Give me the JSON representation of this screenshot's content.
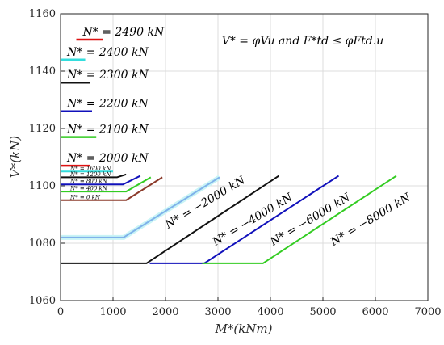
{
  "chart_data": {
    "type": "line",
    "xlabel": "M*(kNm)",
    "ylabel": "V*(kN)",
    "xlim": [
      0,
      7000
    ],
    "ylim": [
      1060,
      1160
    ],
    "xticks": [
      "0",
      "1000",
      "2000",
      "3000",
      "4000",
      "5000",
      "6000",
      "7000"
    ],
    "yticks": [
      "1060",
      "1080",
      "1100",
      "1120",
      "1140",
      "1160"
    ],
    "grid": true,
    "condition": "V* = φVu and F*td ≤ φFtd.u",
    "colors": {
      "red": "#dd1111",
      "cyan": "#33dddd",
      "black": "#111111",
      "blue": "#1111bb",
      "green": "#33cc22",
      "brown": "#8b3a2a",
      "lightblue": "#7fb2ea"
    },
    "upper_labels": [
      {
        "text": "N* = 2490 kN",
        "color": "red",
        "x": [
          300,
          800
        ],
        "y": 1151
      },
      {
        "text": "N* = 2400 kN",
        "color": "cyan",
        "x": [
          0,
          470
        ],
        "y": 1144
      },
      {
        "text": "N* = 2300 kN",
        "color": "black",
        "x": [
          0,
          560
        ],
        "y": 1136
      },
      {
        "text": "N* = 2200 kN",
        "color": "blue",
        "x": [
          0,
          600
        ],
        "y": 1126
      },
      {
        "text": "N* = 2100 kN",
        "color": "green",
        "x": [
          0,
          680
        ],
        "y": 1117
      },
      {
        "text": "N* = 2000 kN",
        "color": "red",
        "x": [
          0,
          560
        ],
        "y": 1107
      }
    ],
    "small_labels": [
      {
        "text": "N* = 1600 kN",
        "color": "cyan",
        "y": 1105
      },
      {
        "text": "N* = 1200 kN",
        "color": "black",
        "y": 1103
      },
      {
        "text": "N* = 800 kN",
        "color": "blue",
        "y": 1100.5
      },
      {
        "text": "N* = 400 kN",
        "color": "green",
        "y": 1098
      },
      {
        "text": "N* = 0 kN",
        "color": "brown",
        "y": 1095
      }
    ],
    "series": [
      {
        "name": "N* = 1600 kN",
        "color": "cyan",
        "x": [
          0,
          1000
        ],
        "y": [
          1105,
          1105
        ]
      },
      {
        "name": "N* = 1200 kN",
        "color": "black",
        "x": [
          0,
          1080,
          1250
        ],
        "y": [
          1103,
          1103,
          1104
        ]
      },
      {
        "name": "N* = 800 kN",
        "color": "blue",
        "x": [
          0,
          1190,
          1520
        ],
        "y": [
          1100.5,
          1100.5,
          1103.5
        ]
      },
      {
        "name": "N* = 400 kN",
        "color": "green",
        "x": [
          0,
          1250,
          1720
        ],
        "y": [
          1098,
          1098,
          1103
        ]
      },
      {
        "name": "N* = 0 kN",
        "color": "brown",
        "x": [
          0,
          1250,
          1940
        ],
        "y": [
          1095,
          1095,
          1103
        ]
      },
      {
        "name": "N* = −2000 kN",
        "color": "lightblue",
        "x": [
          0,
          1200,
          3030
        ],
        "y": [
          1082,
          1082,
          1103
        ]
      },
      {
        "name": "N* = −4000 kN",
        "color": "black",
        "x": [
          0,
          1640,
          4160
        ],
        "y": [
          1073,
          1073,
          1103.5
        ]
      },
      {
        "name": "N* = −6000 kN",
        "color": "blue",
        "x": [
          1700,
          2740,
          5300
        ],
        "y": [
          1073,
          1073,
          1103.5
        ]
      },
      {
        "name": "N* = −8000 kN",
        "color": "green",
        "x": [
          2700,
          3860,
          6400
        ],
        "y": [
          1073,
          1073,
          1103.5
        ]
      }
    ],
    "curve_labels": [
      {
        "text": "N* = −2000 kN",
        "x": 2050,
        "y": 1085
      },
      {
        "text": "N* = −4000 kN",
        "x": 2950,
        "y": 1079
      },
      {
        "text": "N* = −6000 kN",
        "x": 4050,
        "y": 1079
      },
      {
        "text": "N* = −8000 kN",
        "x": 5200,
        "y": 1079
      }
    ]
  }
}
